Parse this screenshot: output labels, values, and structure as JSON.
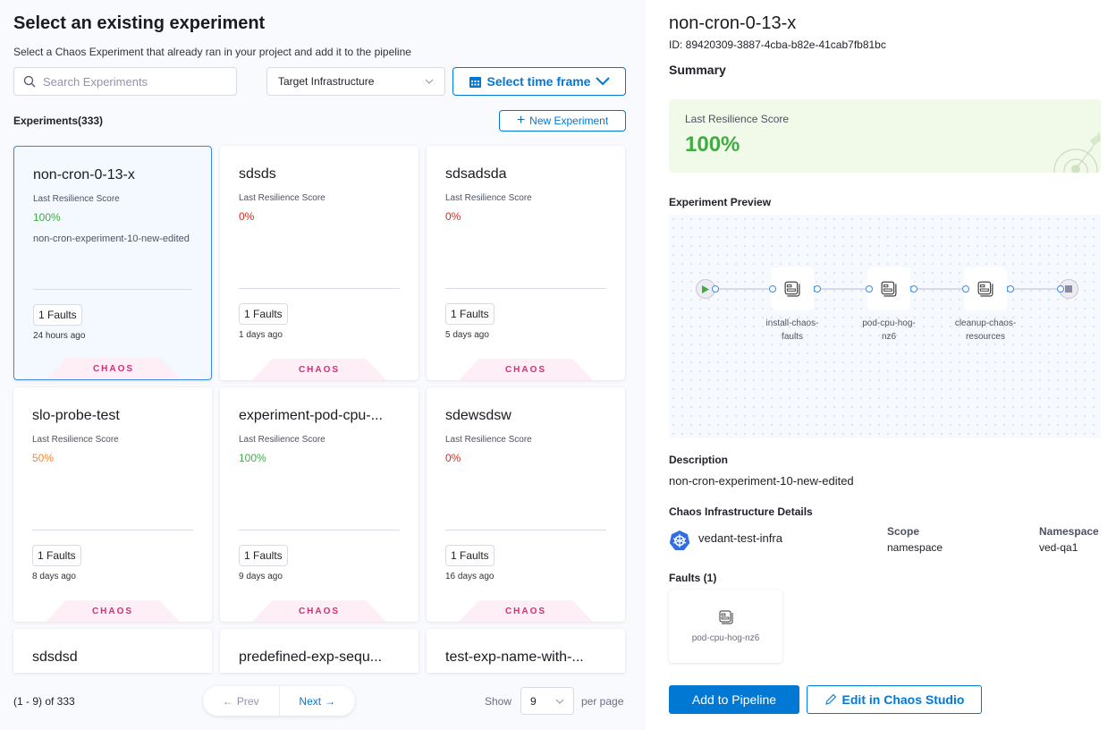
{
  "left": {
    "title": "Select an existing experiment",
    "subtitle": "Select a Chaos Experiment that already ran in your project and add it to the pipeline",
    "search_placeholder": "Search Experiments",
    "infra_select": "Target Infrastructure",
    "time_frame": "Select time frame",
    "count_label": "Experiments(333)",
    "new_experiment": "New Experiment",
    "score_label": "Last Resilience Score",
    "tag": "CHAOS",
    "colors": {
      "good": "#42ab45",
      "bad": "#da291d",
      "mid": "#ff832b"
    },
    "experiments": [
      {
        "name": "non-cron-0-13-x",
        "score": "100%",
        "level": "good",
        "desc": "non-cron-experiment-10-new-edited",
        "faults": "1 Faults",
        "ago": "24 hours ago",
        "selected": true
      },
      {
        "name": "sdsds",
        "score": "0%",
        "level": "bad",
        "desc": "",
        "faults": "1 Faults",
        "ago": "1 days ago"
      },
      {
        "name": "sdsadsda",
        "score": "0%",
        "level": "bad",
        "desc": "",
        "faults": "1 Faults",
        "ago": "5 days ago"
      },
      {
        "name": "slo-probe-test",
        "score": "50%",
        "level": "mid",
        "desc": "",
        "faults": "1 Faults",
        "ago": "8 days ago"
      },
      {
        "name": "experiment-pod-cpu-...",
        "score": "100%",
        "level": "good",
        "desc": "",
        "faults": "1 Faults",
        "ago": "9 days ago"
      },
      {
        "name": "sdewsdsw",
        "score": "0%",
        "level": "bad",
        "desc": "",
        "faults": "1 Faults",
        "ago": "16 days ago"
      },
      {
        "name": "sdsdsd"
      },
      {
        "name": "predefined-exp-sequ..."
      },
      {
        "name": "test-exp-name-with-..."
      }
    ],
    "pagination": {
      "range": "(1 - 9) of 333",
      "prev": "Prev",
      "next": "Next",
      "show": "Show",
      "per_page_value": "9",
      "per_page": "per page"
    }
  },
  "right": {
    "title": "non-cron-0-13-x",
    "id": "ID: 89420309-3887-4cba-b82e-41cab7fb81bc",
    "summary": "Summary",
    "score_label": "Last Resilience Score",
    "score": "100%",
    "preview_label": "Experiment Preview",
    "nodes": [
      {
        "line1": "install-chaos-",
        "line2": "faults"
      },
      {
        "line1": "pod-cpu-hog-",
        "line2": "nz6"
      },
      {
        "line1": "cleanup-chaos-",
        "line2": "resources"
      }
    ],
    "description_label": "Description",
    "description": "non-cron-experiment-10-new-edited",
    "infra_label": "Chaos Infrastructure Details",
    "infra_name": "vedant-test-infra",
    "scope_label": "Scope",
    "scope": "namespace",
    "namespace_label": "Namespace",
    "namespace": "ved-qa1",
    "faults_label": "Faults (1)",
    "fault_name": "pod-cpu-hog-nz6",
    "add_button": "Add to Pipeline",
    "edit_button": "Edit in Chaos Studio"
  }
}
